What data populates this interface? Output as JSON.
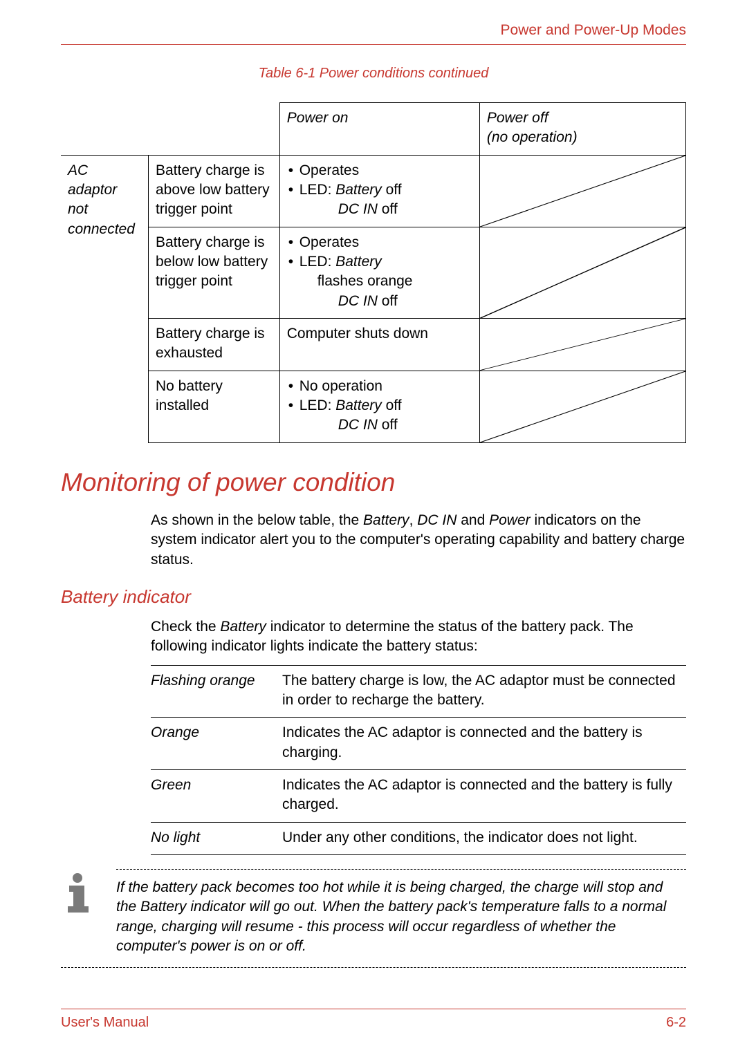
{
  "colors": {
    "accent": "#c7372f",
    "text": "#000000",
    "background": "#ffffff",
    "border": "#000000",
    "icon_fill": "#7a7a7a"
  },
  "header": {
    "right": "Power and Power-Up Modes"
  },
  "table_caption": "Table 6-1 Power conditions continued",
  "power_table": {
    "col_widths_pct": [
      14,
      21,
      32,
      33
    ],
    "headers": {
      "power_on": "Power on",
      "power_off_line1": "Power off",
      "power_off_line2": "(no operation)"
    },
    "row_label": {
      "line1": "AC",
      "line2": "adaptor",
      "line3": "not",
      "line4": "connected"
    },
    "rows": [
      {
        "condition": "Battery charge is above low battery trigger point",
        "on": {
          "bullets": [
            {
              "text": "Operates"
            },
            {
              "text_html": "LED: <i>Battery</i> off"
            }
          ],
          "sub": {
            "italic": "DC IN",
            "rest": " off"
          }
        },
        "off_diag": true
      },
      {
        "condition": "Battery charge is below low battery trigger point",
        "on": {
          "bullets": [
            {
              "text": "Operates"
            },
            {
              "text_html": "LED: <i>Battery</i>",
              "sub_plain": "flashes orange"
            }
          ],
          "sub": {
            "italic": "DC IN",
            "rest": " off"
          }
        },
        "off_diag": true
      },
      {
        "condition": "Battery charge is exhausted",
        "on_plain": "Computer shuts down",
        "off_diag": true
      },
      {
        "condition": "No battery installed",
        "on": {
          "bullets": [
            {
              "text": "No operation"
            },
            {
              "text_html": "LED: <i>Battery</i> off"
            }
          ],
          "sub": {
            "italic": "DC IN",
            "rest": " off"
          }
        },
        "off_diag": true
      }
    ]
  },
  "section_title": "Monitoring of power condition",
  "section_para_html": "As shown in the below table, the <i>Battery</i>, <i>DC IN</i> and <i>Power</i> indicators on the system indicator alert you to the computer's operating capability and battery charge status.",
  "subsection_title": "Battery indicator",
  "subsection_para_html": "Check the <i>Battery</i> indicator to determine the status of the battery pack. The following indicator lights indicate the battery status:",
  "indicator_table": {
    "rows": [
      {
        "key": "Flashing orange",
        "desc": "The battery charge is low, the AC adaptor must be connected in order to recharge the battery."
      },
      {
        "key": "Orange",
        "desc": "Indicates the AC adaptor is connected and the battery is charging."
      },
      {
        "key": "Green",
        "desc": "Indicates the AC adaptor is connected and the battery is fully charged."
      },
      {
        "key": "No light",
        "desc": "Under any other conditions, the indicator does not light."
      }
    ]
  },
  "note_text": "If the battery pack becomes too hot while it is being charged, the charge will stop and the Battery indicator will go out. When the battery pack's temperature falls to a normal range, charging will resume - this process will occur regardless of whether the computer's power is on or off.",
  "footer": {
    "left": "User's Manual",
    "right": "6-2"
  }
}
